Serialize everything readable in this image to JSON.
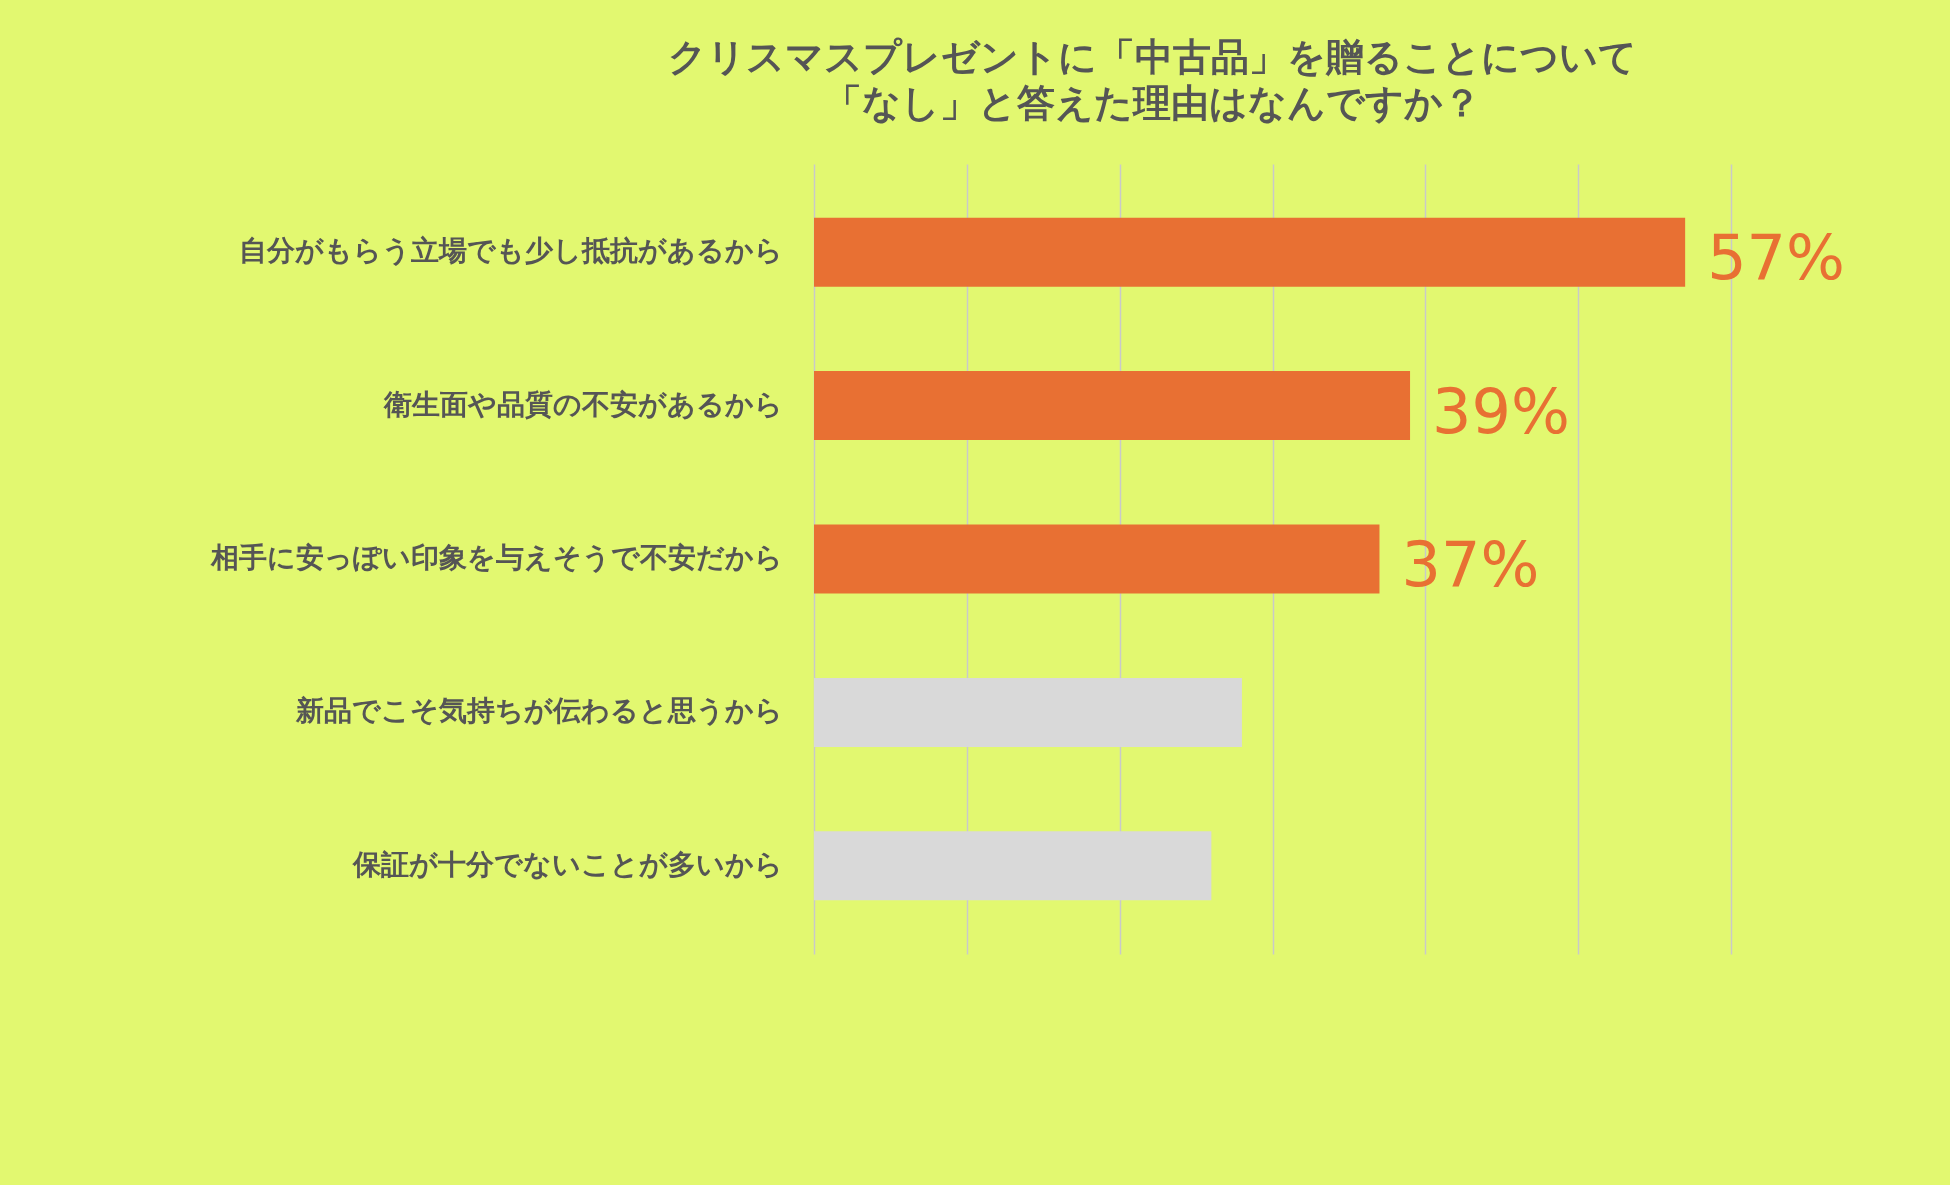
{
  "chart_data": {
    "type": "bar",
    "orientation": "horizontal",
    "title": "クリスマスプレゼントに「中古品」を贈ることについて",
    "subtitle": "「なし」と答えた理由はなんですか？",
    "categories": [
      "自分がもらう立場でも少し抵抗があるから",
      "衛生面や品質の不安があるから",
      "相手に安っぽい印象を与えそうで不安だから",
      "新品でこそ気持ちが伝わると思うから",
      "保証が十分でないことが多いから"
    ],
    "values": [
      57,
      39,
      37,
      28,
      26
    ],
    "colors": [
      "#e87033",
      "#e87033",
      "#e87033",
      "#d9d9d9",
      "#d9d9d9"
    ],
    "value_labels": [
      "57%",
      "39%",
      "37%",
      null,
      null
    ],
    "xlim": [
      0,
      60
    ],
    "xticks": [
      {
        "value": 0,
        "label": null
      },
      {
        "value": 10,
        "label": null
      },
      {
        "value": 20,
        "label": null
      },
      {
        "value": 30,
        "label": null
      },
      {
        "value": 40,
        "label": null
      },
      {
        "value": 50,
        "label": null
      },
      {
        "value": 60,
        "label": null
      }
    ],
    "grid": "x",
    "tick_labels": "y",
    "legend": false
  }
}
